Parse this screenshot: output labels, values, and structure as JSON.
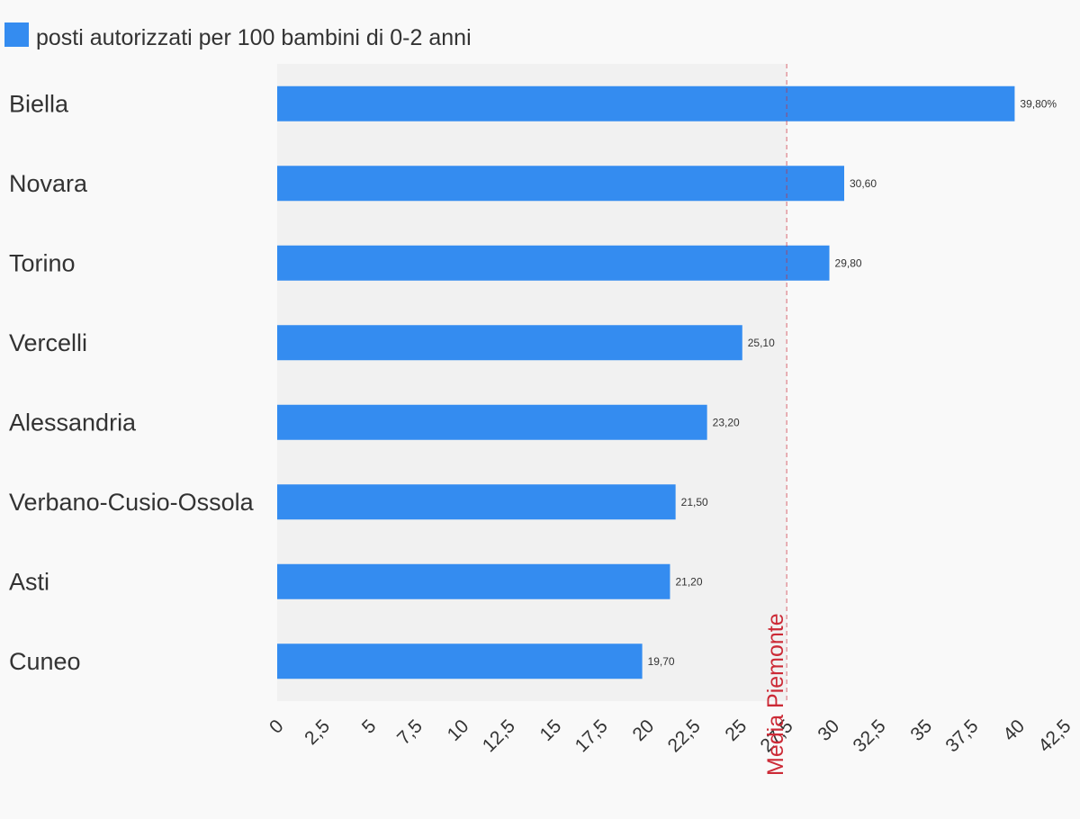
{
  "chart_data": {
    "type": "bar",
    "orientation": "horizontal",
    "categories": [
      "Biella",
      "Novara",
      "Torino",
      "Vercelli",
      "Alessandria",
      "Verbano-Cusio-Ossola",
      "Asti",
      "Cuneo"
    ],
    "series": [
      {
        "name": "posti autorizzati per 100 bambini di 0-2 anni",
        "values": [
          39.8,
          30.6,
          29.8,
          25.1,
          23.2,
          21.5,
          21.2,
          19.7
        ],
        "data_labels": [
          "39,80%",
          "30,60",
          "29,80",
          "25,10",
          "23,20",
          "21,50",
          "21,20",
          "19,70"
        ],
        "color": "#348cf0"
      }
    ],
    "xlim": [
      0,
      42.5
    ],
    "x_ticks": [
      "0",
      "2,5",
      "5",
      "7,5",
      "10",
      "12,5",
      "15",
      "17,5",
      "20",
      "22,5",
      "25",
      "27,5",
      "30",
      "32,5",
      "35",
      "37,5",
      "40",
      "42,5"
    ],
    "reference_line": {
      "label": "Media Piemonte",
      "value": 27.5,
      "color": "#cc2a36"
    },
    "legend_position": "top-left",
    "grid": false,
    "colors": {
      "background": "#f9f9f9",
      "plot_band": "#f1f1f1",
      "text": "#333333"
    }
  }
}
